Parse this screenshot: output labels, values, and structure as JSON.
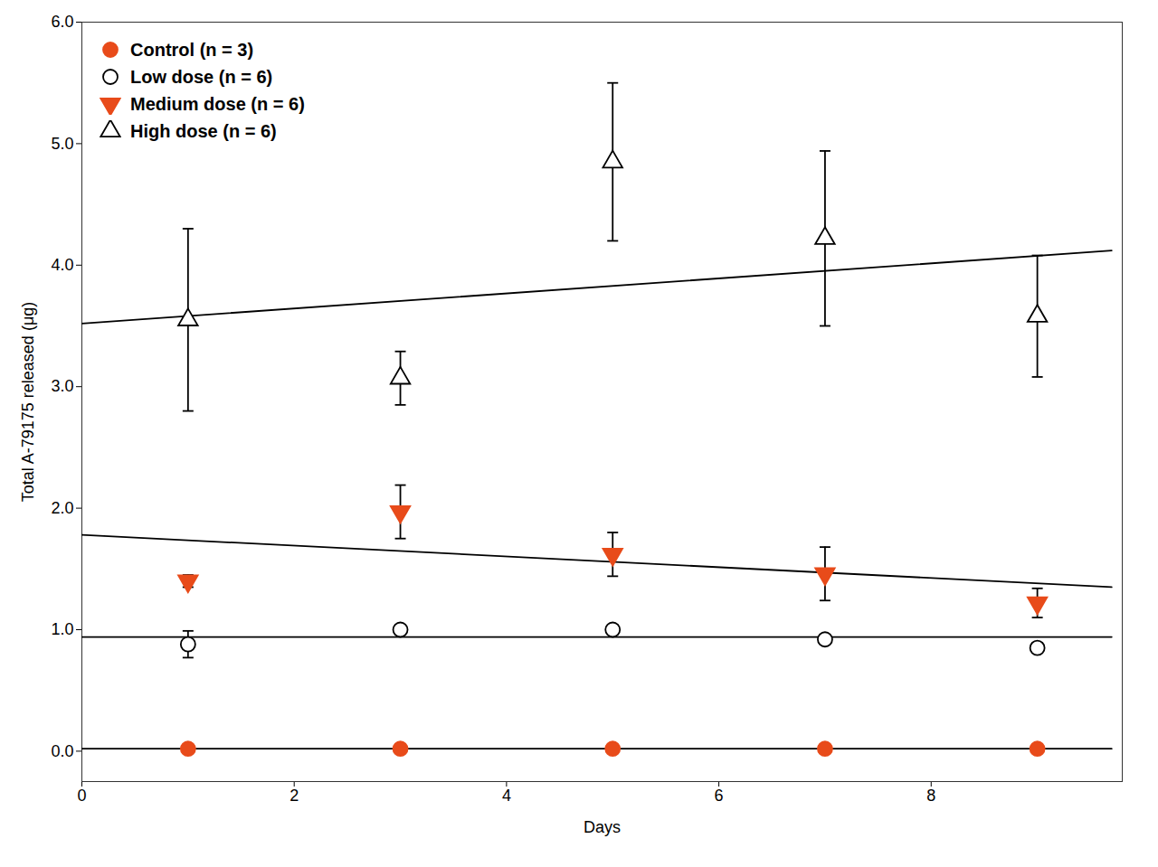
{
  "chart_data": {
    "type": "scatter",
    "xlabel": "Days",
    "ylabel": "Total A-79175 released (μg)",
    "x": [
      1,
      3,
      5,
      7,
      9
    ],
    "series": [
      {
        "name": "Control (n = 3)",
        "color": "#E84B1A",
        "marker": "circle",
        "values": [
          0.02,
          0.02,
          0.02,
          0.02,
          0.02
        ],
        "fit": {
          "x": [
            0.0,
            9.7
          ],
          "y": [
            0.02,
            0.02
          ]
        }
      },
      {
        "name": "Low dose (n = 6)",
        "color": "#000000",
        "marker": "open-circle",
        "values": [
          0.88,
          1.0,
          1.0,
          0.92,
          0.85
        ],
        "error": [
          0.11,
          0.04,
          0.04,
          0.04,
          0.04
        ],
        "fit": {
          "x": [
            0.0,
            9.7
          ],
          "y": [
            0.94,
            0.94
          ]
        }
      },
      {
        "name": "Medium dose (n = 6)",
        "color": "#E84B1A",
        "marker": "triangle-down",
        "values": [
          1.4,
          1.97,
          1.62,
          1.46,
          1.22
        ],
        "error": [
          0.05,
          0.22,
          0.18,
          0.22,
          0.12
        ],
        "fit": {
          "x": [
            0.0,
            9.7
          ],
          "y": [
            1.78,
            1.35
          ]
        }
      },
      {
        "name": "High dose (n = 6)",
        "color": "#000000",
        "marker": "open-triangle-up",
        "values": [
          3.55,
          3.07,
          4.85,
          4.22,
          3.58
        ],
        "error": [
          0.75,
          0.22,
          0.65,
          0.72,
          0.5
        ],
        "fit": {
          "x": [
            0.0,
            9.7
          ],
          "y": [
            3.52,
            4.12
          ]
        }
      }
    ],
    "xlim": [
      0,
      9.8
    ],
    "ylim": [
      -0.25,
      6.0
    ],
    "xticks": [
      0,
      2,
      4,
      6,
      8
    ],
    "yticks": [
      0,
      1,
      2,
      3,
      4,
      5,
      6
    ],
    "grid": false,
    "legend": "upper left"
  }
}
